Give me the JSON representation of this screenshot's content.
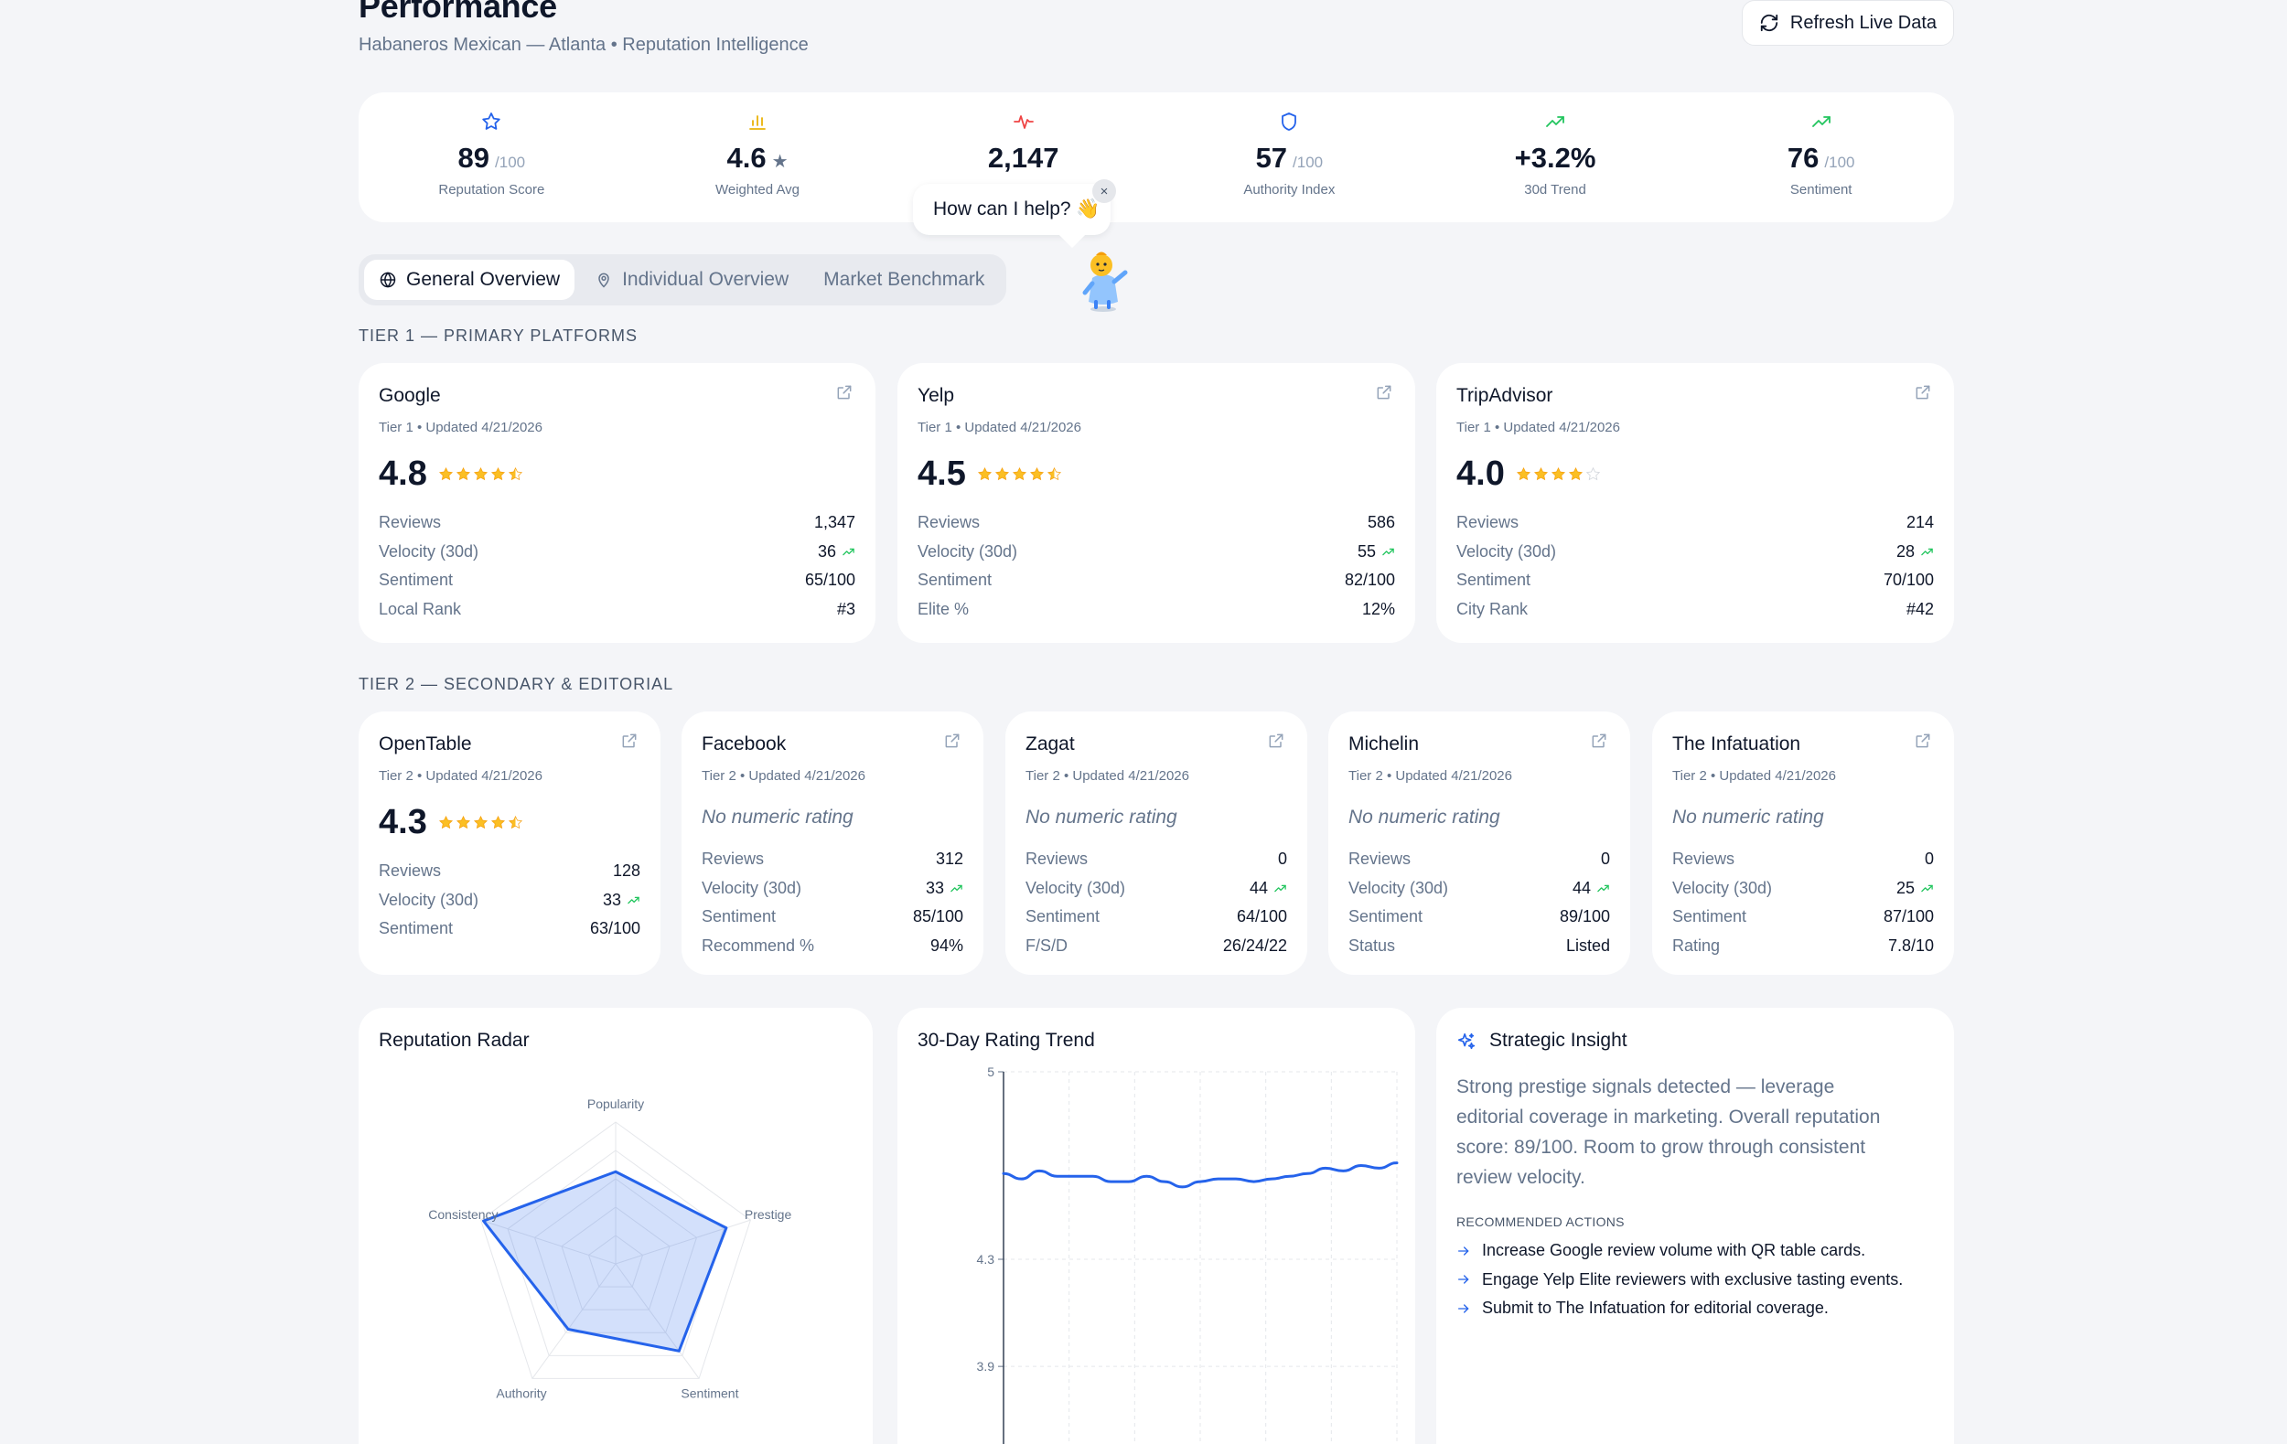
{
  "header": {
    "title": "Performance",
    "subtitle": "Habaneros Mexican — Atlanta • Reputation Intelligence",
    "refresh_label": "Refresh Live Data"
  },
  "kpis": [
    {
      "value": "89",
      "unit": "/100",
      "label": "Reputation Score",
      "icon": "star-icon",
      "color": "#2563eb"
    },
    {
      "value": "4.6",
      "unit": "★",
      "label": "Weighted Avg",
      "icon": "bar-chart-icon",
      "color": "#eab308"
    },
    {
      "value": "2,147",
      "unit": "",
      "label": "",
      "icon": "pulse-icon",
      "color": "#ef4444"
    },
    {
      "value": "57",
      "unit": "/100",
      "label": "Authority Index",
      "icon": "shield-icon",
      "color": "#2563eb"
    },
    {
      "value": "+3.2%",
      "unit": "",
      "label": "30d Trend",
      "icon": "trending-up-icon",
      "color": "#22c55e"
    },
    {
      "value": "76",
      "unit": "/100",
      "label": "Sentiment",
      "icon": "trending-up-icon",
      "color": "#22c55e"
    }
  ],
  "tabs": [
    {
      "label": "General Overview",
      "icon": "globe-icon",
      "active": true
    },
    {
      "label": "Individual Overview",
      "icon": "map-pin-icon",
      "active": false
    },
    {
      "label": "Market Benchmark",
      "icon": "",
      "active": false
    }
  ],
  "assistant": {
    "bubble_text": "How can I help? 👋",
    "close": "×"
  },
  "tier1": {
    "label": "TIER 1 — PRIMARY PLATFORMS",
    "cards": [
      {
        "name": "Google",
        "meta": "Tier 1 • Updated 4/21/2026",
        "rating": "4.8",
        "stars": 4.5,
        "metrics": [
          {
            "label": "Reviews",
            "value": "1,347",
            "trend": false
          },
          {
            "label": "Velocity (30d)",
            "value": "36",
            "trend": true
          },
          {
            "label": "Sentiment",
            "value": "65/100",
            "trend": false
          },
          {
            "label": "Local Rank",
            "value": "#3",
            "trend": false
          }
        ]
      },
      {
        "name": "Yelp",
        "meta": "Tier 1 • Updated 4/21/2026",
        "rating": "4.5",
        "stars": 4.5,
        "metrics": [
          {
            "label": "Reviews",
            "value": "586",
            "trend": false
          },
          {
            "label": "Velocity (30d)",
            "value": "55",
            "trend": true
          },
          {
            "label": "Sentiment",
            "value": "82/100",
            "trend": false
          },
          {
            "label": "Elite %",
            "value": "12%",
            "trend": false
          }
        ]
      },
      {
        "name": "TripAdvisor",
        "meta": "Tier 1 • Updated 4/21/2026",
        "rating": "4.0",
        "stars": 4,
        "metrics": [
          {
            "label": "Reviews",
            "value": "214",
            "trend": false
          },
          {
            "label": "Velocity (30d)",
            "value": "28",
            "trend": true
          },
          {
            "label": "Sentiment",
            "value": "70/100",
            "trend": false
          },
          {
            "label": "City Rank",
            "value": "#42",
            "trend": false
          }
        ]
      }
    ]
  },
  "tier2": {
    "label": "TIER 2 — SECONDARY & EDITORIAL",
    "cards": [
      {
        "name": "OpenTable",
        "meta": "Tier 2 • Updated 4/21/2026",
        "rating": "4.3",
        "stars": 4.5,
        "no_rating": "",
        "metrics": [
          {
            "label": "Reviews",
            "value": "128",
            "trend": false
          },
          {
            "label": "Velocity (30d)",
            "value": "33",
            "trend": true
          },
          {
            "label": "Sentiment",
            "value": "63/100",
            "trend": false
          }
        ]
      },
      {
        "name": "Facebook",
        "meta": "Tier 2 • Updated 4/21/2026",
        "rating": "",
        "stars": 0,
        "no_rating": "No numeric rating",
        "metrics": [
          {
            "label": "Reviews",
            "value": "312",
            "trend": false
          },
          {
            "label": "Velocity (30d)",
            "value": "33",
            "trend": true
          },
          {
            "label": "Sentiment",
            "value": "85/100",
            "trend": false
          },
          {
            "label": "Recommend %",
            "value": "94%",
            "trend": false
          }
        ]
      },
      {
        "name": "Zagat",
        "meta": "Tier 2 • Updated 4/21/2026",
        "rating": "",
        "stars": 0,
        "no_rating": "No numeric rating",
        "metrics": [
          {
            "label": "Reviews",
            "value": "0",
            "trend": false
          },
          {
            "label": "Velocity (30d)",
            "value": "44",
            "trend": true
          },
          {
            "label": "Sentiment",
            "value": "64/100",
            "trend": false
          },
          {
            "label": "F/S/D",
            "value": "26/24/22",
            "trend": false
          }
        ]
      },
      {
        "name": "Michelin",
        "meta": "Tier 2 • Updated 4/21/2026",
        "rating": "",
        "stars": 0,
        "no_rating": "No numeric rating",
        "metrics": [
          {
            "label": "Reviews",
            "value": "0",
            "trend": false
          },
          {
            "label": "Velocity (30d)",
            "value": "44",
            "trend": true
          },
          {
            "label": "Sentiment",
            "value": "89/100",
            "trend": false
          },
          {
            "label": "Status",
            "value": "Listed",
            "trend": false
          }
        ]
      },
      {
        "name": "The Infatuation",
        "meta": "Tier 2 • Updated 4/21/2026",
        "rating": "",
        "stars": 0,
        "no_rating": "No numeric rating",
        "metrics": [
          {
            "label": "Reviews",
            "value": "0",
            "trend": false
          },
          {
            "label": "Velocity (30d)",
            "value": "25",
            "trend": true
          },
          {
            "label": "Sentiment",
            "value": "87/100",
            "trend": false
          },
          {
            "label": "Rating",
            "value": "7.8/10",
            "trend": false
          }
        ]
      }
    ]
  },
  "radar": {
    "title": "Reputation Radar",
    "axes": [
      "Popularity",
      "Prestige",
      "Sentiment",
      "Authority",
      "Consistency"
    ],
    "values": [
      65,
      82,
      76,
      57,
      98
    ],
    "max": 100,
    "color": "#2563eb"
  },
  "trend": {
    "title": "30-Day Rating Trend",
    "y_ticks": [
      "5",
      "4.3",
      "3.9"
    ]
  },
  "chart_data": {
    "type": "line",
    "title": "30-Day Rating Trend",
    "xlabel": "",
    "ylabel": "",
    "y_ticks": [
      5,
      4.3,
      3.9
    ],
    "values": [
      4.62,
      4.6,
      4.63,
      4.61,
      4.61,
      4.61,
      4.59,
      4.59,
      4.61,
      4.59,
      4.57,
      4.59,
      4.6,
      4.6,
      4.59,
      4.6,
      4.61,
      4.62,
      4.64,
      4.63,
      4.65,
      4.64,
      4.66
    ],
    "grid": true
  },
  "insight": {
    "title": "Strategic Insight",
    "text": "Strong prestige signals detected — leverage editorial coverage in marketing. Overall reputation score: 89/100. Room to grow through consistent review velocity.",
    "rec_label": "RECOMMENDED ACTIONS",
    "actions": [
      "Increase Google review volume with QR table cards.",
      "Engage Yelp Elite reviewers with exclusive tasting events.",
      "Submit to The Infatuation for editorial coverage."
    ]
  }
}
